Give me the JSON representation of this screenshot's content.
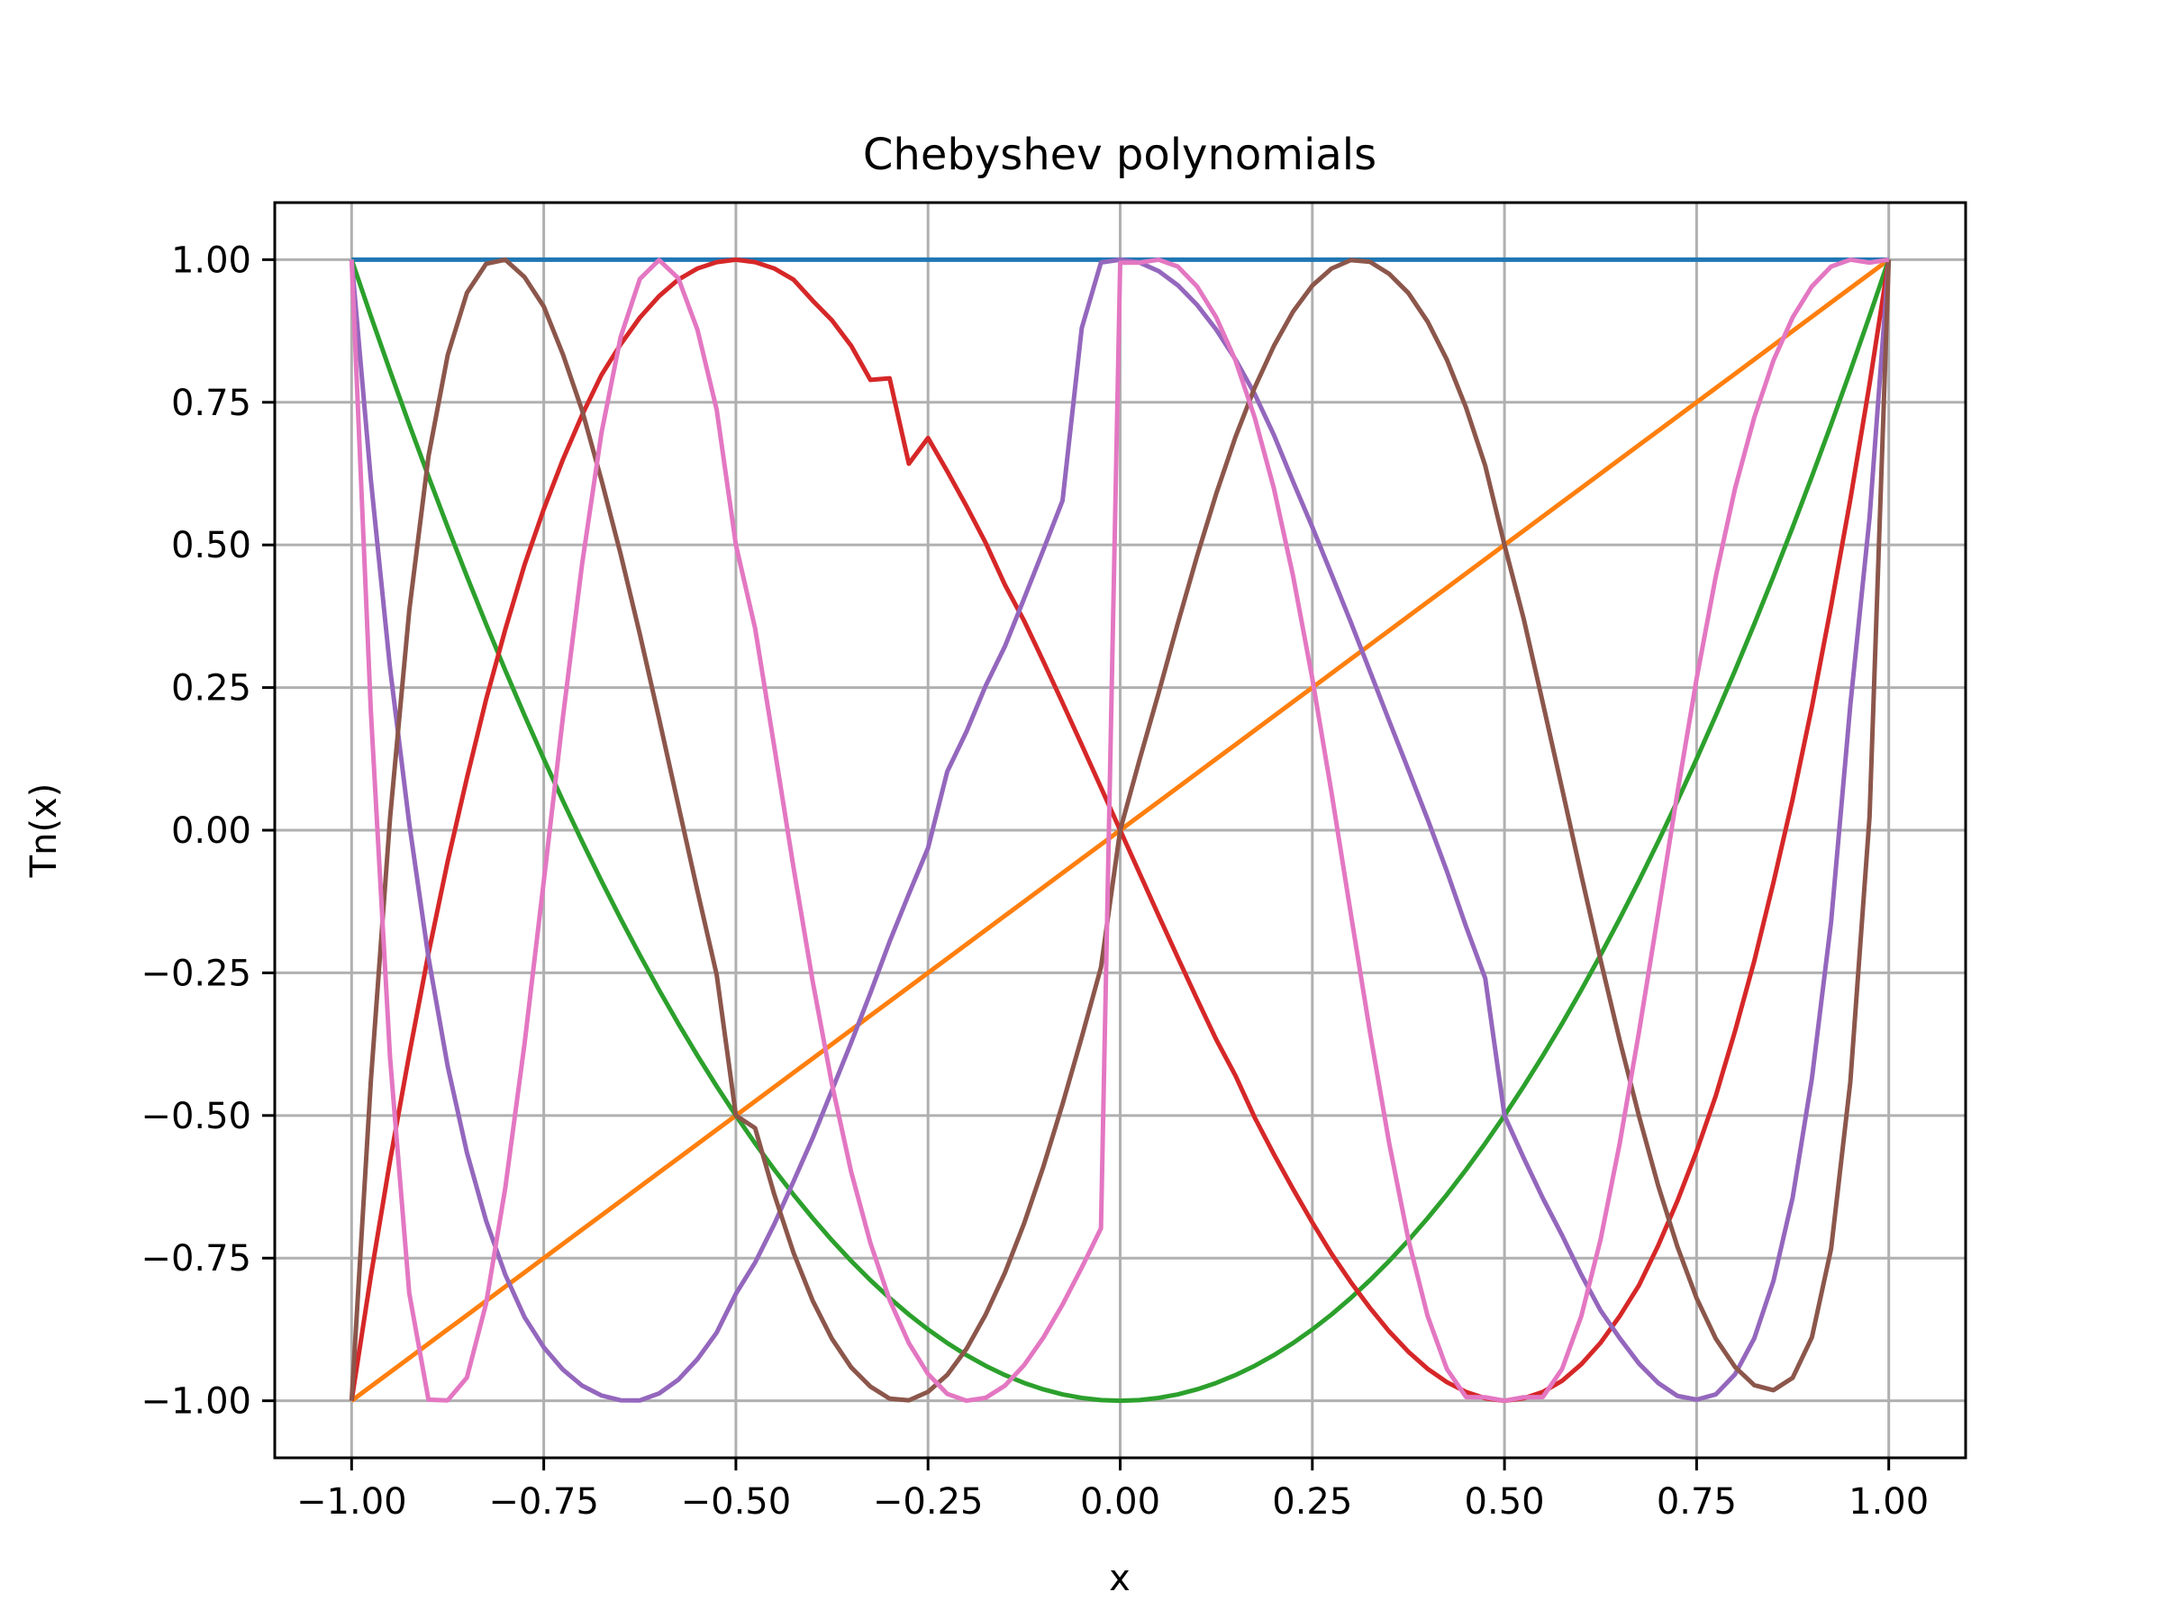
{
  "chart_data": {
    "type": "line",
    "title": "Chebyshev polynomials",
    "xlabel": "x",
    "ylabel": "Tn(x)",
    "xlim": [
      -1.1,
      1.1
    ],
    "ylim": [
      -1.1,
      1.1
    ],
    "xticks": [
      -1.0,
      -0.75,
      -0.5,
      -0.25,
      0.0,
      0.25,
      0.5,
      0.75,
      1.0
    ],
    "xtick_labels": [
      "−1.00",
      "−0.75",
      "−0.50",
      "−0.25",
      "0.00",
      "0.25",
      "0.50",
      "0.75",
      "1.00"
    ],
    "yticks": [
      1.0,
      0.75,
      0.5,
      0.25,
      0.0,
      -0.25,
      -0.5,
      -0.75,
      -1.0
    ],
    "ytick_labels": [
      "1.00",
      "0.75",
      "0.50",
      "0.25",
      "0.00",
      "−0.25",
      "−0.50",
      "−0.75",
      "−1.00"
    ],
    "grid": true,
    "legend": false,
    "x": [
      -1.0,
      -0.975,
      -0.95,
      -0.925,
      -0.9,
      -0.875,
      -0.85,
      -0.825,
      -0.8,
      -0.775,
      -0.75,
      -0.725,
      -0.7,
      -0.675,
      -0.65,
      -0.625,
      -0.6,
      -0.575,
      -0.55,
      -0.525,
      -0.5,
      -0.475,
      -0.45,
      -0.425,
      -0.4,
      -0.375,
      -0.35,
      -0.325,
      -0.3,
      -0.275,
      -0.25,
      -0.225,
      -0.2,
      -0.175,
      -0.15,
      -0.125,
      -0.1,
      -0.075,
      -0.05,
      -0.025,
      0.0,
      0.025,
      0.05,
      0.075,
      0.1,
      0.125,
      0.15,
      0.175,
      0.2,
      0.225,
      0.25,
      0.275,
      0.3,
      0.325,
      0.35,
      0.375,
      0.4,
      0.425,
      0.45,
      0.475,
      0.5,
      0.525,
      0.55,
      0.575,
      0.6,
      0.625,
      0.65,
      0.675,
      0.7,
      0.725,
      0.75,
      0.775,
      0.8,
      0.825,
      0.85,
      0.875,
      0.9,
      0.925,
      0.95,
      0.975,
      1.0
    ],
    "series": [
      {
        "color": "#1f77b4",
        "values": [
          1.0,
          1.0,
          1.0,
          1.0,
          1.0,
          1.0,
          1.0,
          1.0,
          1.0,
          1.0,
          1.0,
          1.0,
          1.0,
          1.0,
          1.0,
          1.0,
          1.0,
          1.0,
          1.0,
          1.0,
          1.0,
          1.0,
          1.0,
          1.0,
          1.0,
          1.0,
          1.0,
          1.0,
          1.0,
          1.0,
          1.0,
          1.0,
          1.0,
          1.0,
          1.0,
          1.0,
          1.0,
          1.0,
          1.0,
          1.0,
          1.0,
          1.0,
          1.0,
          1.0,
          1.0,
          1.0,
          1.0,
          1.0,
          1.0,
          1.0,
          1.0,
          1.0,
          1.0,
          1.0,
          1.0,
          1.0,
          1.0,
          1.0,
          1.0,
          1.0,
          1.0,
          1.0,
          1.0,
          1.0,
          1.0,
          1.0,
          1.0,
          1.0,
          1.0,
          1.0,
          1.0,
          1.0,
          1.0,
          1.0,
          1.0,
          1.0,
          1.0,
          1.0,
          1.0,
          1.0,
          1.0
        ]
      },
      {
        "color": "#ff7f0e",
        "values": [
          -1.0,
          -0.975,
          -0.95,
          -0.925,
          -0.9,
          -0.875,
          -0.85,
          -0.825,
          -0.8,
          -0.775,
          -0.75,
          -0.725,
          -0.7,
          -0.675,
          -0.65,
          -0.625,
          -0.6,
          -0.575,
          -0.55,
          -0.525,
          -0.5,
          -0.475,
          -0.45,
          -0.425,
          -0.4,
          -0.375,
          -0.35,
          -0.325,
          -0.3,
          -0.275,
          -0.25,
          -0.225,
          -0.2,
          -0.175,
          -0.15,
          -0.125,
          -0.1,
          -0.075,
          -0.05,
          -0.025,
          0.0,
          0.025,
          0.05,
          0.075,
          0.1,
          0.125,
          0.15,
          0.175,
          0.2,
          0.225,
          0.25,
          0.275,
          0.3,
          0.325,
          0.35,
          0.375,
          0.4,
          0.425,
          0.45,
          0.475,
          0.5,
          0.525,
          0.55,
          0.575,
          0.6,
          0.625,
          0.65,
          0.675,
          0.7,
          0.725,
          0.75,
          0.775,
          0.8,
          0.825,
          0.85,
          0.875,
          0.9,
          0.925,
          0.95,
          0.975,
          1.0
        ]
      },
      {
        "color": "#2ca02c",
        "values": [
          1.0,
          0.9012,
          0.805,
          0.7112,
          0.62,
          0.5312,
          0.445,
          0.3612,
          0.28,
          0.2013,
          0.125,
          0.0512,
          -0.02,
          -0.0888,
          -0.155,
          -0.2188,
          -0.28,
          -0.3388,
          -0.395,
          -0.4488,
          -0.5,
          -0.5488,
          -0.595,
          -0.6388,
          -0.68,
          -0.7188,
          -0.755,
          -0.7887,
          -0.82,
          -0.8488,
          -0.875,
          -0.8988,
          -0.92,
          -0.9388,
          -0.955,
          -0.9688,
          -0.98,
          -0.9888,
          -0.995,
          -0.9988,
          -1.0,
          -0.9988,
          -0.995,
          -0.9888,
          -0.98,
          -0.9688,
          -0.955,
          -0.9388,
          -0.92,
          -0.8988,
          -0.875,
          -0.8488,
          -0.82,
          -0.7887,
          -0.755,
          -0.7188,
          -0.68,
          -0.6388,
          -0.595,
          -0.5488,
          -0.5,
          -0.4488,
          -0.395,
          -0.3388,
          -0.28,
          -0.2188,
          -0.155,
          -0.0888,
          -0.02,
          0.0512,
          0.125,
          0.2013,
          0.28,
          0.3612,
          0.445,
          0.5312,
          0.62,
          0.7112,
          0.805,
          0.9012,
          1.0
        ]
      },
      {
        "color": "#d62728",
        "values": [
          -1.0,
          -0.7817,
          -0.5795,
          -0.3929,
          -0.216,
          -0.0547,
          0.0915,
          0.2293,
          0.352,
          0.4652,
          0.5625,
          0.6499,
          0.728,
          0.7977,
          0.8515,
          0.8984,
          0.936,
          0.965,
          0.9845,
          0.9957,
          1.0,
          0.9957,
          0.9845,
          0.965,
          0.928,
          0.8936,
          0.849,
          0.7893,
          0.792,
          0.6424,
          0.6875,
          0.6291,
          0.568,
          0.5036,
          0.4302,
          0.3671,
          0.296,
          0.2233,
          0.1495,
          0.0748,
          0.0,
          -0.0748,
          -0.1495,
          -0.2233,
          -0.296,
          -0.3671,
          -0.4302,
          -0.5036,
          -0.568,
          -0.6291,
          -0.6875,
          -0.7424,
          -0.792,
          -0.8373,
          -0.8785,
          -0.9141,
          -0.944,
          -0.9673,
          -0.9845,
          -0.9957,
          -1.0,
          -0.9957,
          -0.9845,
          -0.965,
          -0.936,
          -0.8984,
          -0.8515,
          -0.7977,
          -0.728,
          -0.6499,
          -0.5625,
          -0.4652,
          -0.352,
          -0.2293,
          -0.0915,
          0.0547,
          0.216,
          0.3929,
          0.5795,
          0.7817,
          1.0
        ]
      },
      {
        "color": "#9467bd",
        "values": [
          1.0,
          0.6148,
          0.2841,
          0.0115,
          -0.2232,
          -0.4138,
          -0.5649,
          -0.6846,
          -0.7792,
          -0.8535,
          -0.9062,
          -0.9455,
          -0.9736,
          -0.9907,
          -0.9991,
          -0.9994,
          -0.9872,
          -0.9632,
          -0.927,
          -0.8805,
          -0.8125,
          -0.7578,
          -0.6902,
          -0.6155,
          -0.5392,
          -0.4559,
          -0.3722,
          -0.2854,
          -0.1952,
          -0.1119,
          -0.0312,
          0.1028,
          0.1728,
          0.2532,
          0.3221,
          0.4061,
          0.4912,
          0.5777,
          0.8801,
          0.995,
          1.0,
          0.995,
          0.98,
          0.9551,
          0.9208,
          0.8773,
          0.8251,
          0.7645,
          0.6928,
          0.6107,
          0.5312,
          0.4485,
          0.3648,
          0.2785,
          0.1916,
          0.1058,
          0.0192,
          -0.0716,
          -0.1688,
          -0.2598,
          -0.5,
          -0.5744,
          -0.6452,
          -0.7101,
          -0.7792,
          -0.8416,
          -0.8904,
          -0.9348,
          -0.9688,
          -0.9915,
          -0.998,
          -0.9888,
          -0.9536,
          -0.8906,
          -0.7899,
          -0.6436,
          -0.4352,
          -0.1606,
          0.2192,
          0.5474,
          1.0
        ]
      },
      {
        "color": "#8c564b",
        "values": [
          -1.0,
          -0.4402,
          0.0212,
          0.3852,
          0.6551,
          0.8326,
          0.9417,
          0.9927,
          0.9999,
          0.9695,
          0.918,
          0.8338,
          0.7353,
          0.6141,
          0.4841,
          0.3438,
          0.1958,
          0.0444,
          -0.1066,
          -0.2533,
          -0.5,
          -0.5221,
          -0.6386,
          -0.7407,
          -0.8249,
          -0.8914,
          -0.9415,
          -0.9752,
          -0.9962,
          -0.9992,
          -0.9844,
          -0.9547,
          -0.9091,
          -0.8489,
          -0.7758,
          -0.6892,
          -0.5899,
          -0.4802,
          -0.3626,
          -0.2405,
          0.0,
          0.1225,
          0.2405,
          0.3626,
          0.4802,
          0.5899,
          0.6892,
          0.7758,
          0.8489,
          0.9091,
          0.9547,
          0.9844,
          0.9992,
          0.9962,
          0.9752,
          0.9415,
          0.8914,
          0.8249,
          0.7407,
          0.6386,
          0.5,
          0.3705,
          0.2225,
          0.0724,
          -0.0792,
          -0.2273,
          -0.3686,
          -0.5009,
          -0.623,
          -0.73,
          -0.8203,
          -0.8913,
          -0.9408,
          -0.9727,
          -0.9815,
          -0.9597,
          -0.8888,
          -0.7337,
          -0.4413,
          0.0232,
          1.0
        ]
      },
      {
        "color": "#e377c2",
        "values": [
          1.0,
          0.2096,
          -0.3985,
          -0.8115,
          -0.998,
          -0.9993,
          -0.9594,
          -0.8295,
          -0.6265,
          -0.3743,
          -0.0898,
          0.1987,
          0.4676,
          0.6956,
          0.8642,
          0.966,
          0.9994,
          0.9676,
          0.8771,
          0.737,
          0.5,
          0.3539,
          0.1458,
          -0.0657,
          -0.2656,
          -0.4452,
          -0.599,
          -0.7234,
          -0.8234,
          -0.8988,
          -0.9531,
          -0.9879,
          -0.9999,
          -0.9949,
          -0.9735,
          -0.9376,
          -0.8894,
          -0.8315,
          -0.7666,
          -0.6978,
          0.9946,
          0.9949,
          0.9999,
          0.9879,
          0.9531,
          0.8988,
          0.8234,
          0.7234,
          0.599,
          0.4452,
          0.2656,
          0.0657,
          -0.1458,
          -0.3539,
          -0.5486,
          -0.7176,
          -0.8515,
          -0.9442,
          -0.9934,
          -0.9939,
          -1.0,
          -0.9939,
          -0.9934,
          -0.9442,
          -0.8515,
          -0.7176,
          -0.5486,
          -0.3539,
          -0.1458,
          0.0657,
          0.2656,
          0.4452,
          0.599,
          0.7234,
          0.8234,
          0.8988,
          0.9531,
          0.9879,
          0.9999,
          0.9949,
          1.0
        ]
      }
    ]
  }
}
